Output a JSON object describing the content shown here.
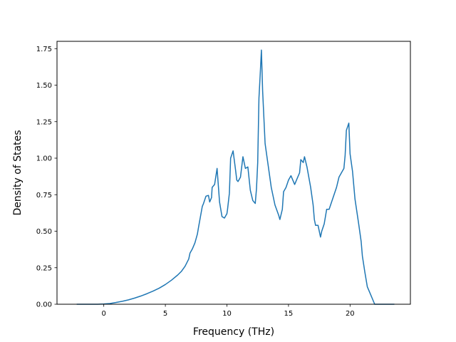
{
  "chart_data": {
    "type": "line",
    "title": "",
    "xlabel": "Frequency (THz)",
    "ylabel": "Density of States",
    "xlim": [
      -3.8,
      24.9
    ],
    "ylim": [
      0.0,
      1.8
    ],
    "xticks": [
      0,
      5,
      10,
      15,
      20
    ],
    "xtick_labels": [
      "0",
      "5",
      "10",
      "15",
      "20"
    ],
    "yticks": [
      0.0,
      0.25,
      0.5,
      0.75,
      1.0,
      1.25,
      1.5,
      1.75
    ],
    "ytick_labels": [
      "0.00",
      "0.25",
      "0.50",
      "0.75",
      "1.00",
      "1.25",
      "1.50",
      "1.75"
    ],
    "grid": false,
    "legend": "none",
    "line_color": "#1f77b4",
    "series": [
      {
        "x": [
          -2.2,
          -1.5,
          -1.0,
          -0.5,
          0.0,
          0.5,
          1.0,
          1.5,
          2.0,
          2.5,
          3.0,
          3.5,
          4.0,
          4.5,
          5.0,
          5.5,
          6.0,
          6.3,
          6.6,
          6.9,
          7.0,
          7.2,
          7.4,
          7.6,
          7.7,
          8.0,
          8.1,
          8.3,
          8.5,
          8.6,
          8.75,
          8.8,
          9.0,
          9.2,
          9.4,
          9.6,
          9.8,
          10.0,
          10.05,
          10.2,
          10.3,
          10.5,
          10.7,
          10.8,
          10.9,
          11.1,
          11.3,
          11.5,
          11.7,
          11.9,
          12.1,
          12.3,
          12.4,
          12.5,
          12.6,
          12.7,
          12.8,
          12.9,
          13.1,
          13.3,
          13.6,
          13.9,
          14.2,
          14.3,
          14.5,
          14.6,
          14.8,
          15.0,
          15.2,
          15.3,
          15.5,
          15.7,
          15.9,
          16.0,
          16.2,
          16.3,
          16.5,
          16.8,
          17.0,
          17.1,
          17.2,
          17.4,
          17.6,
          17.7,
          17.9,
          18.1,
          18.3,
          18.5,
          18.7,
          18.9,
          19.1,
          19.3,
          19.5,
          19.6,
          19.7,
          19.9,
          20.0,
          20.2,
          20.4,
          20.7,
          20.9,
          21.0,
          21.2,
          21.4,
          21.6,
          22.0,
          22.5,
          23.0,
          23.6
        ],
        "y": [
          0.0,
          0.0,
          0.0,
          0.0,
          0.002,
          0.005,
          0.012,
          0.02,
          0.03,
          0.042,
          0.056,
          0.072,
          0.09,
          0.11,
          0.135,
          0.165,
          0.2,
          0.225,
          0.26,
          0.31,
          0.35,
          0.38,
          0.42,
          0.48,
          0.53,
          0.67,
          0.69,
          0.74,
          0.745,
          0.7,
          0.73,
          0.8,
          0.82,
          0.93,
          0.7,
          0.6,
          0.59,
          0.62,
          0.65,
          0.76,
          1.0,
          1.05,
          0.92,
          0.85,
          0.84,
          0.87,
          1.01,
          0.93,
          0.94,
          0.78,
          0.71,
          0.69,
          0.79,
          0.97,
          1.41,
          1.57,
          1.74,
          1.46,
          1.1,
          0.98,
          0.8,
          0.68,
          0.61,
          0.58,
          0.65,
          0.77,
          0.8,
          0.85,
          0.88,
          0.86,
          0.82,
          0.86,
          0.9,
          0.99,
          0.97,
          1.01,
          0.94,
          0.8,
          0.68,
          0.58,
          0.54,
          0.54,
          0.46,
          0.5,
          0.55,
          0.65,
          0.65,
          0.7,
          0.75,
          0.8,
          0.87,
          0.9,
          0.93,
          1.02,
          1.19,
          1.24,
          1.03,
          0.91,
          0.72,
          0.55,
          0.43,
          0.33,
          0.22,
          0.12,
          0.08,
          0.0,
          0.0,
          0.0,
          0.0
        ]
      }
    ]
  }
}
